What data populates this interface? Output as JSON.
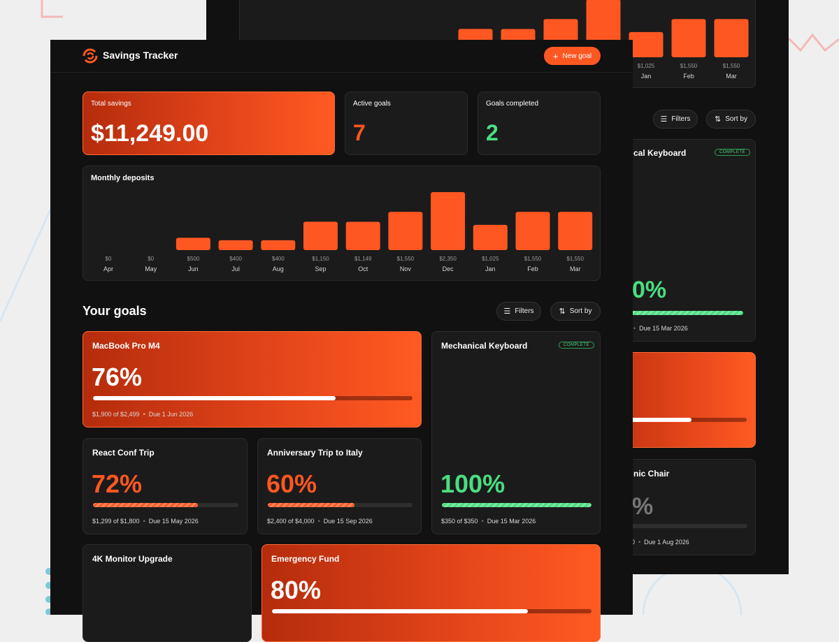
{
  "app": {
    "title": "Savings Tracker",
    "new_goal": "New goal"
  },
  "stats": [
    {
      "label": "Total savings",
      "value": "$11,249.00"
    },
    {
      "label": "Active goals",
      "value": 7
    },
    {
      "label": "Goals completed",
      "value": 2
    }
  ],
  "monthly_deposits": {
    "type": "bar",
    "title": "Monthly deposits",
    "categories": [
      "Apr",
      "May",
      "Jun",
      "Jul",
      "Aug",
      "Sep",
      "Oct",
      "Nov",
      "Dec",
      "Jan",
      "Feb",
      "Mar"
    ],
    "values": [
      0,
      0,
      500,
      400,
      400,
      1150,
      1149,
      1550,
      2350,
      1025,
      1550,
      1550
    ],
    "value_labels": [
      "$0",
      "$0",
      "$500",
      "$400",
      "$400",
      "$1,150",
      "$1,149",
      "$1,550",
      "$2,350",
      "$1,025",
      "$1,550",
      "$1,550"
    ],
    "color": "#ff5722"
  },
  "goals_section": {
    "title": "Your goals",
    "filters": "Filters",
    "sort": "Sort by"
  },
  "goals": [
    {
      "name": "MacBook Pro M4",
      "progress": {
        "value": 76,
        "label": "76%"
      },
      "amount": "$1,900 of $2,499",
      "due": "Due 1 Jun 2026",
      "featured": true,
      "color": "#ffffff"
    },
    {
      "name": "Mechanical Keyboard",
      "badge": "COMPLETE",
      "progress": {
        "value": 100,
        "label": "100%"
      },
      "amount": "$350 of $350",
      "due": "Due 15 Mar 2026",
      "featured": false,
      "color": "#4ade80"
    },
    {
      "name": "React Conf Trip",
      "progress": {
        "value": 72,
        "label": "72%"
      },
      "amount": "$1,299 of $1,800",
      "due": "Due 15 May 2026",
      "featured": false,
      "color": "#ff5722"
    },
    {
      "name": "Anniversary Trip to Italy",
      "progress": {
        "value": 60,
        "label": "60%"
      },
      "amount": "$2,400 of $4,000",
      "due": "Due 15 Sep 2026",
      "featured": false,
      "color": "#ff5722"
    },
    {
      "name": "4K Monitor Upgrade",
      "featured": false
    },
    {
      "name": "Emergency Fund",
      "progress": {
        "value": 80,
        "label": "80%"
      },
      "featured": true,
      "color": "#ffffff"
    }
  ],
  "background_window": {
    "filters": "Filters",
    "sort": "Sort by",
    "keyboard_name": "cal Keyboard",
    "keyboard_badge": "COMPLETE",
    "keyboard_percent": "0%",
    "keyboard_due": "Due 15 Mar 2026",
    "chair_name": "nic Chair",
    "chair_percent": "%",
    "chair_amount": "0",
    "chair_due": "Due 1 Aug 2026"
  }
}
